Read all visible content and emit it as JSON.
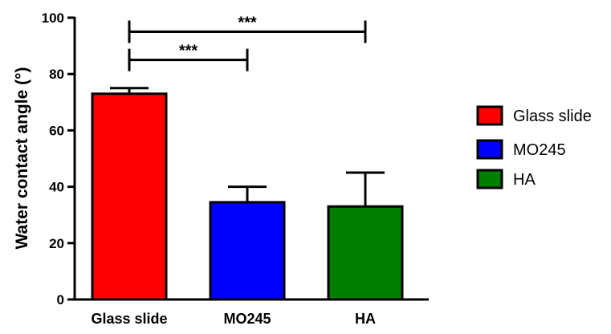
{
  "chart_data": {
    "type": "bar",
    "ylabel": "Water contact angle (°)",
    "xlabel": "",
    "ylim": [
      0,
      100
    ],
    "yticks": [
      0,
      20,
      40,
      60,
      80,
      100
    ],
    "categories": [
      "Glass slide",
      "MO245",
      "HA"
    ],
    "values": [
      73,
      34.5,
      33
    ],
    "errors": [
      2,
      5.5,
      12
    ],
    "colors": [
      "#ff0000",
      "#0000ff",
      "#008000"
    ],
    "legend": {
      "position": "right",
      "entries": [
        "Glass slide",
        "MO245",
        "HA"
      ]
    },
    "significance": [
      {
        "from": "Glass slide",
        "to": "MO245",
        "label": "***",
        "y": 85
      },
      {
        "from": "Glass slide",
        "to": "HA",
        "label": "***",
        "y": 95
      }
    ]
  }
}
